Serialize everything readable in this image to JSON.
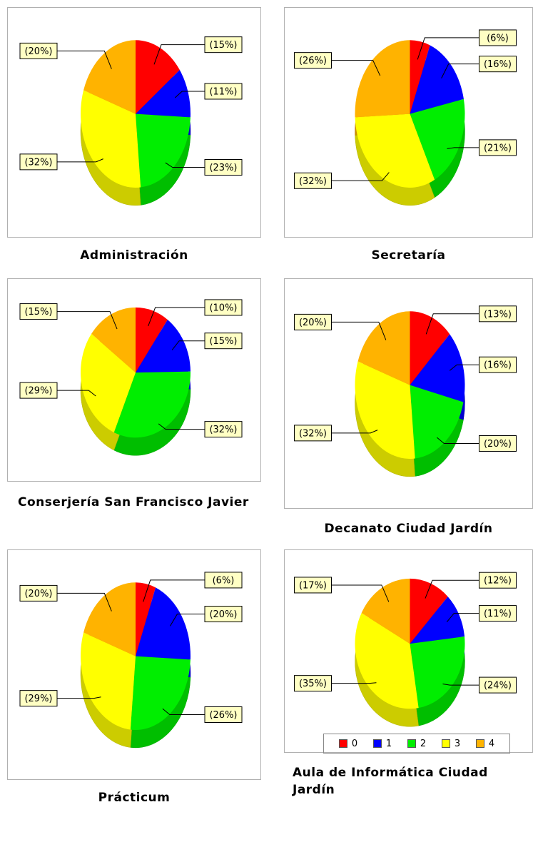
{
  "chart_data": [
    {
      "type": "pie",
      "title": "Administración",
      "values": [
        15,
        11,
        23,
        32,
        20
      ],
      "value_labels": [
        "(15%)",
        "(11%)",
        "(23%)",
        "(32%)",
        "(20%)"
      ]
    },
    {
      "type": "pie",
      "title": "Secretaría",
      "values": [
        6,
        16,
        21,
        32,
        26
      ],
      "value_labels": [
        "(6%)",
        "(16%)",
        "(21%)",
        "(32%)",
        "(26%)"
      ]
    },
    {
      "type": "pie",
      "title": "Conserjería San Francisco Javier",
      "values": [
        10,
        15,
        32,
        29,
        15
      ],
      "value_labels": [
        "(10%)",
        "(15%)",
        "(32%)",
        "(29%)",
        "(15%)"
      ]
    },
    {
      "type": "pie",
      "title": "Decanato Ciudad Jardín",
      "values": [
        13,
        16,
        20,
        32,
        20
      ],
      "value_labels": [
        "(13%)",
        "(16%)",
        "(20%)",
        "(32%)",
        "(20%)"
      ]
    },
    {
      "type": "pie",
      "title": "Prácticum",
      "values": [
        6,
        20,
        26,
        29,
        20
      ],
      "value_labels": [
        "(6%)",
        "(20%)",
        "(26%)",
        "(29%)",
        "(20%)"
      ]
    },
    {
      "type": "pie",
      "title": "Aula de Informática Ciudad Jardín",
      "values": [
        12,
        11,
        24,
        35,
        17
      ],
      "value_labels": [
        "(12%)",
        "(11%)",
        "(24%)",
        "(35%)",
        "(17%)"
      ]
    }
  ],
  "legend": {
    "items": [
      {
        "name": "0",
        "color": "#ff0000"
      },
      {
        "name": "1",
        "color": "#0000ff"
      },
      {
        "name": "2",
        "color": "#00ee00"
      },
      {
        "name": "3",
        "color": "#ffff00"
      },
      {
        "name": "4",
        "color": "#ffb300"
      }
    ]
  }
}
